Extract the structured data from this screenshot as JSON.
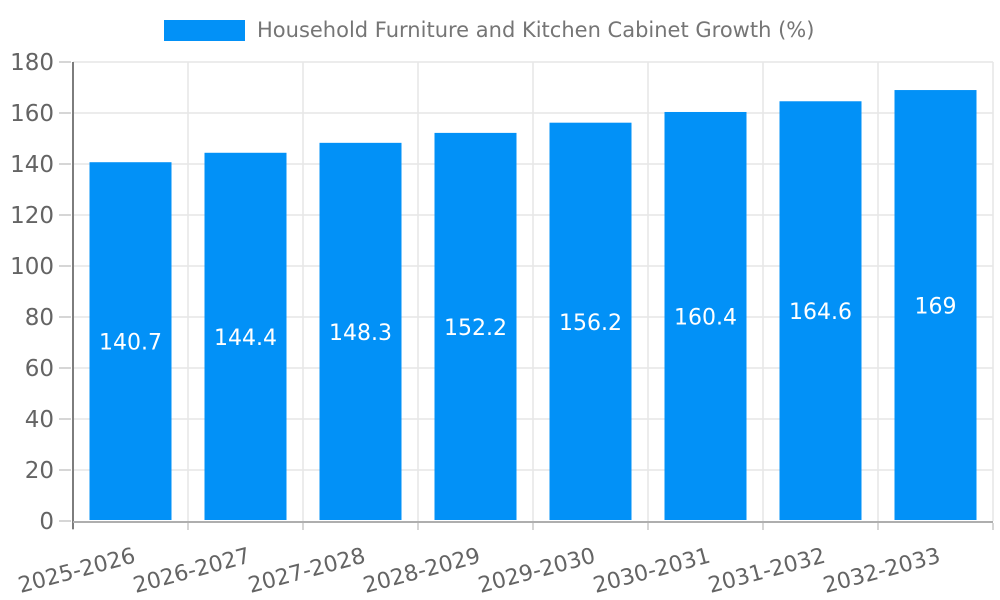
{
  "chart_data": {
    "type": "bar",
    "categories": [
      "2025-2026",
      "2026-2027",
      "2027-2028",
      "2028-2029",
      "2029-2030",
      "2030-2031",
      "2031-2032",
      "2032-2033"
    ],
    "series": [
      {
        "name": "Household Furniture and Kitchen Cabinet Growth (%)",
        "values": [
          140.7,
          144.4,
          148.3,
          152.2,
          156.2,
          160.4,
          164.6,
          169
        ]
      }
    ],
    "value_labels": [
      "140.7",
      "144.4",
      "148.3",
      "152.2",
      "156.2",
      "160.4",
      "164.6",
      "169"
    ],
    "ylim": [
      0,
      180
    ],
    "yticks": [
      0,
      20,
      40,
      60,
      80,
      100,
      120,
      140,
      160,
      180
    ],
    "xlabel": "",
    "ylabel": "",
    "grid": true,
    "legend": {
      "position": "top",
      "entries": [
        "Household Furniture and Kitchen Cabinet Growth (%)"
      ]
    },
    "colors": {
      "bar": "#0291f7",
      "grid": "#e6e6e6",
      "tick": "#c9c9c9",
      "axis_y": "#7d7d7d",
      "axis_x": "#aeaeae",
      "tick_text": "#646464",
      "legend_text": "#757575",
      "value_text": "#ffffff",
      "background": "#ffffff"
    }
  }
}
